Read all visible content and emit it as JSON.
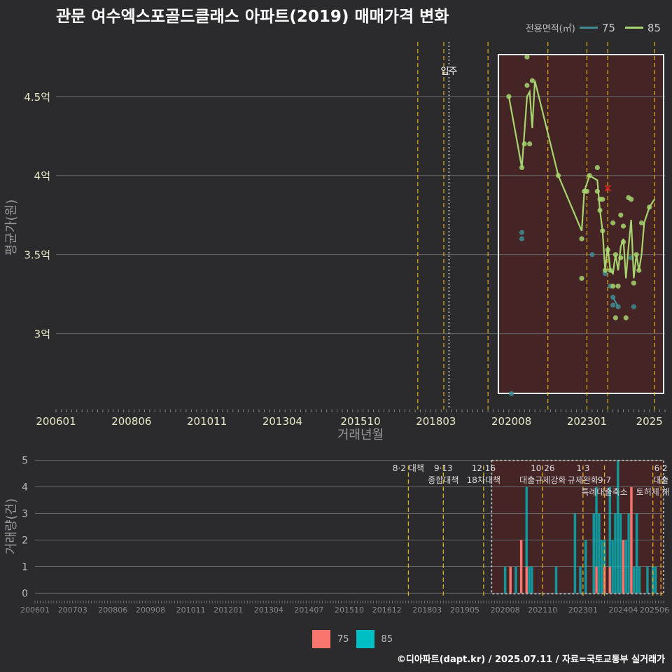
{
  "title": "관문 여수엑스포골드클래스 아파트(2019) 매매가격 변화",
  "legend_title": "전용면적(㎡)",
  "credit": "©디아파트(dapt.kr) / 2025.07.11 / 자료=국토교통부 실거래가",
  "colors": {
    "s75": "#3f8c93",
    "s85": "#a6d46f",
    "bar75": "#f8766d",
    "bar85": "#00bfc4",
    "policy": "#e0b020",
    "shade": "#4a2326"
  },
  "chart_data": [
    {
      "type": "line",
      "title": "관문 여수엑스포골드클래스 아파트(2019) 매매가격 변화",
      "xlabel": "거래년월",
      "ylabel": "평균가(원)",
      "x_ticks": [
        "200601",
        "200806",
        "201011",
        "201304",
        "201510",
        "201803",
        "202008",
        "202301",
        "2025"
      ],
      "y_ticks": [
        {
          "v": 3.0,
          "label": "3억"
        },
        {
          "v": 3.5,
          "label": "3.5억"
        },
        {
          "v": 4.0,
          "label": "4억"
        },
        {
          "v": 4.5,
          "label": "4.5억"
        }
      ],
      "ylim": [
        2.52,
        4.88
      ],
      "xlim": [
        "2006-01",
        "2025-07"
      ],
      "move_in": {
        "date": "2018-08",
        "label": "입주"
      },
      "policy_dates": [
        "2017-08",
        "2018-06",
        "2019-11",
        "2021-10",
        "2023-01",
        "2023-09",
        "2025-03"
      ],
      "highlight_box": [
        "2020-03",
        "2025-07"
      ],
      "series": [
        {
          "name": "75",
          "points": [
            [
              "2020-12",
              3.64
            ],
            [
              "2020-12",
              3.6
            ],
            [
              "2023-03",
              3.5
            ],
            [
              "2023-08",
              3.38
            ],
            [
              "2023-10",
              3.3
            ],
            [
              "2023-11",
              3.23
            ],
            [
              "2023-11",
              3.18
            ],
            [
              "2024-01",
              3.17
            ],
            [
              "2024-06",
              3.48
            ],
            [
              "2024-07",
              3.17
            ],
            [
              "2020-08",
              2.62
            ]
          ],
          "line": [
            [
              "2023-11",
              3.23
            ],
            [
              "2024-01",
              3.17
            ]
          ]
        },
        {
          "name": "85",
          "line": [
            [
              "2020-07",
              4.5
            ],
            [
              "2020-12",
              4.05
            ],
            [
              "2021-02",
              4.5
            ],
            [
              "2021-03",
              4.53
            ],
            [
              "2021-04",
              4.3
            ],
            [
              "2021-05",
              4.6
            ],
            [
              "2022-02",
              4.0
            ],
            [
              "2022-11",
              3.65
            ],
            [
              "2022-12",
              3.9
            ],
            [
              "2023-02",
              4.0
            ],
            [
              "2023-05",
              3.97
            ],
            [
              "2023-06",
              3.78
            ],
            [
              "2023-07",
              3.65
            ],
            [
              "2023-08",
              3.4
            ],
            [
              "2023-09",
              3.55
            ],
            [
              "2023-10",
              3.4
            ],
            [
              "2023-11",
              3.38
            ],
            [
              "2023-12",
              3.5
            ],
            [
              "2024-01",
              3.4
            ],
            [
              "2024-02",
              3.55
            ],
            [
              "2024-03",
              3.6
            ],
            [
              "2024-04",
              3.35
            ],
            [
              "2024-05",
              3.55
            ],
            [
              "2024-06",
              3.72
            ],
            [
              "2024-07",
              3.35
            ],
            [
              "2024-08",
              3.5
            ],
            [
              "2024-09",
              3.4
            ],
            [
              "2024-10",
              3.5
            ],
            [
              "2024-11",
              3.7
            ],
            [
              "2025-01",
              3.8
            ],
            [
              "2025-03",
              3.85
            ]
          ],
          "points": [
            [
              "2020-07",
              4.5
            ],
            [
              "2020-12",
              4.05
            ],
            [
              "2021-01",
              4.2
            ],
            [
              "2021-02",
              4.57
            ],
            [
              "2021-02",
              4.75
            ],
            [
              "2021-03",
              4.2
            ],
            [
              "2021-04",
              4.6
            ],
            [
              "2022-02",
              4.0
            ],
            [
              "2022-11",
              3.6
            ],
            [
              "2022-11",
              3.35
            ],
            [
              "2022-12",
              3.9
            ],
            [
              "2023-01",
              3.9
            ],
            [
              "2023-02",
              4.0
            ],
            [
              "2023-05",
              4.05
            ],
            [
              "2023-05",
              3.9
            ],
            [
              "2023-06",
              3.85
            ],
            [
              "2023-06",
              3.78
            ],
            [
              "2023-07",
              3.65
            ],
            [
              "2023-07",
              3.85
            ],
            [
              "2023-08",
              3.4
            ],
            [
              "2023-09",
              3.53
            ],
            [
              "2023-10",
              3.4
            ],
            [
              "2023-11",
              3.3
            ],
            [
              "2023-11",
              3.7
            ],
            [
              "2023-12",
              3.5
            ],
            [
              "2023-12",
              3.1
            ],
            [
              "2024-01",
              3.3
            ],
            [
              "2024-02",
              3.48
            ],
            [
              "2024-02",
              3.75
            ],
            [
              "2024-03",
              3.58
            ],
            [
              "2024-03",
              3.68
            ],
            [
              "2024-04",
              3.1
            ],
            [
              "2024-05",
              3.86
            ],
            [
              "2024-06",
              3.85
            ],
            [
              "2024-07",
              3.32
            ],
            [
              "2024-08",
              3.5
            ],
            [
              "2024-09",
              3.4
            ],
            [
              "2024-10",
              3.7
            ],
            [
              "2025-01",
              3.8
            ]
          ]
        }
      ],
      "markers": [
        {
          "x": "2023-09",
          "y": 3.92,
          "symbol": "x"
        }
      ]
    },
    {
      "type": "bar",
      "ylabel": "거래량(건)",
      "x_ticks": [
        "200601",
        "200703",
        "200806",
        "200908",
        "201011",
        "201201",
        "201304",
        "201407",
        "201510",
        "201612",
        "201803",
        "201905",
        "202008",
        "202110",
        "202301",
        "202404",
        "202506"
      ],
      "y_ticks": [
        0,
        1,
        2,
        3,
        4,
        5
      ],
      "ylim": [
        -0.2,
        5.2
      ],
      "xlim": [
        "2006-01",
        "2025-07"
      ],
      "policies": [
        {
          "date": "2017-08",
          "lines": [
            "8·2 대책"
          ]
        },
        {
          "date": "2018-09",
          "lines": [
            "9·13",
            "종합대책"
          ]
        },
        {
          "date": "2019-12",
          "lines": [
            "12·16",
            "18차대책"
          ]
        },
        {
          "date": "2021-10",
          "lines": [
            "10·26",
            "대출규제강화"
          ]
        },
        {
          "date": "2023-01",
          "lines": [
            "1·3",
            "규제완화"
          ]
        },
        {
          "date": "2023-09",
          "lines": [
            "",
            "9·7",
            "특례대출축소"
          ]
        },
        {
          "date": "2025-03",
          "lines": [
            "",
            "",
            "토허제 해"
          ]
        },
        {
          "date": "2025-06",
          "lines": [
            "6·2",
            "대출"
          ]
        }
      ],
      "highlight_box": [
        "2020-03",
        "2025-07"
      ],
      "bars": [
        {
          "x": "2020-08",
          "v75": 0,
          "v85": 1
        },
        {
          "x": "2020-10",
          "v75": 1,
          "v85": 0
        },
        {
          "x": "2020-12",
          "v75": 0,
          "v85": 1
        },
        {
          "x": "2021-02",
          "v75": 2,
          "v85": 0
        },
        {
          "x": "2021-04",
          "v75": 1,
          "v85": 3
        },
        {
          "x": "2021-05",
          "v75": 0,
          "v85": 1
        },
        {
          "x": "2021-06",
          "v75": 0,
          "v85": 1
        },
        {
          "x": "2022-03",
          "v75": 0,
          "v85": 1
        },
        {
          "x": "2022-10",
          "v75": 0,
          "v85": 3
        },
        {
          "x": "2022-12",
          "v75": 0,
          "v85": 1
        },
        {
          "x": "2023-02",
          "v75": 0,
          "v85": 2
        },
        {
          "x": "2023-05",
          "v75": 0,
          "v85": 3
        },
        {
          "x": "2023-06",
          "v75": 1,
          "v85": 3
        },
        {
          "x": "2023-07",
          "v75": 0,
          "v85": 3
        },
        {
          "x": "2023-08",
          "v75": 0,
          "v85": 2
        },
        {
          "x": "2023-09",
          "v75": 1,
          "v85": 1
        },
        {
          "x": "2023-11",
          "v75": 1,
          "v85": 3
        },
        {
          "x": "2023-12",
          "v75": 0,
          "v85": 2
        },
        {
          "x": "2024-01",
          "v75": 0,
          "v85": 3
        },
        {
          "x": "2024-02",
          "v75": 0,
          "v85": 5
        },
        {
          "x": "2024-03",
          "v75": 0,
          "v85": 3
        },
        {
          "x": "2024-04",
          "v75": 2,
          "v85": 0
        },
        {
          "x": "2024-05",
          "v75": 0,
          "v85": 2
        },
        {
          "x": "2024-06",
          "v75": 0,
          "v85": 3
        },
        {
          "x": "2024-07",
          "v75": 4,
          "v85": 0
        },
        {
          "x": "2024-08",
          "v75": 0,
          "v85": 1
        },
        {
          "x": "2024-09",
          "v75": 0,
          "v85": 3
        },
        {
          "x": "2024-10",
          "v75": 0,
          "v85": 1
        },
        {
          "x": "2025-01",
          "v75": 0,
          "v85": 1
        },
        {
          "x": "2025-03",
          "v75": 0,
          "v85": 1
        },
        {
          "x": "2025-04",
          "v75": 0,
          "v85": 1
        }
      ]
    }
  ]
}
